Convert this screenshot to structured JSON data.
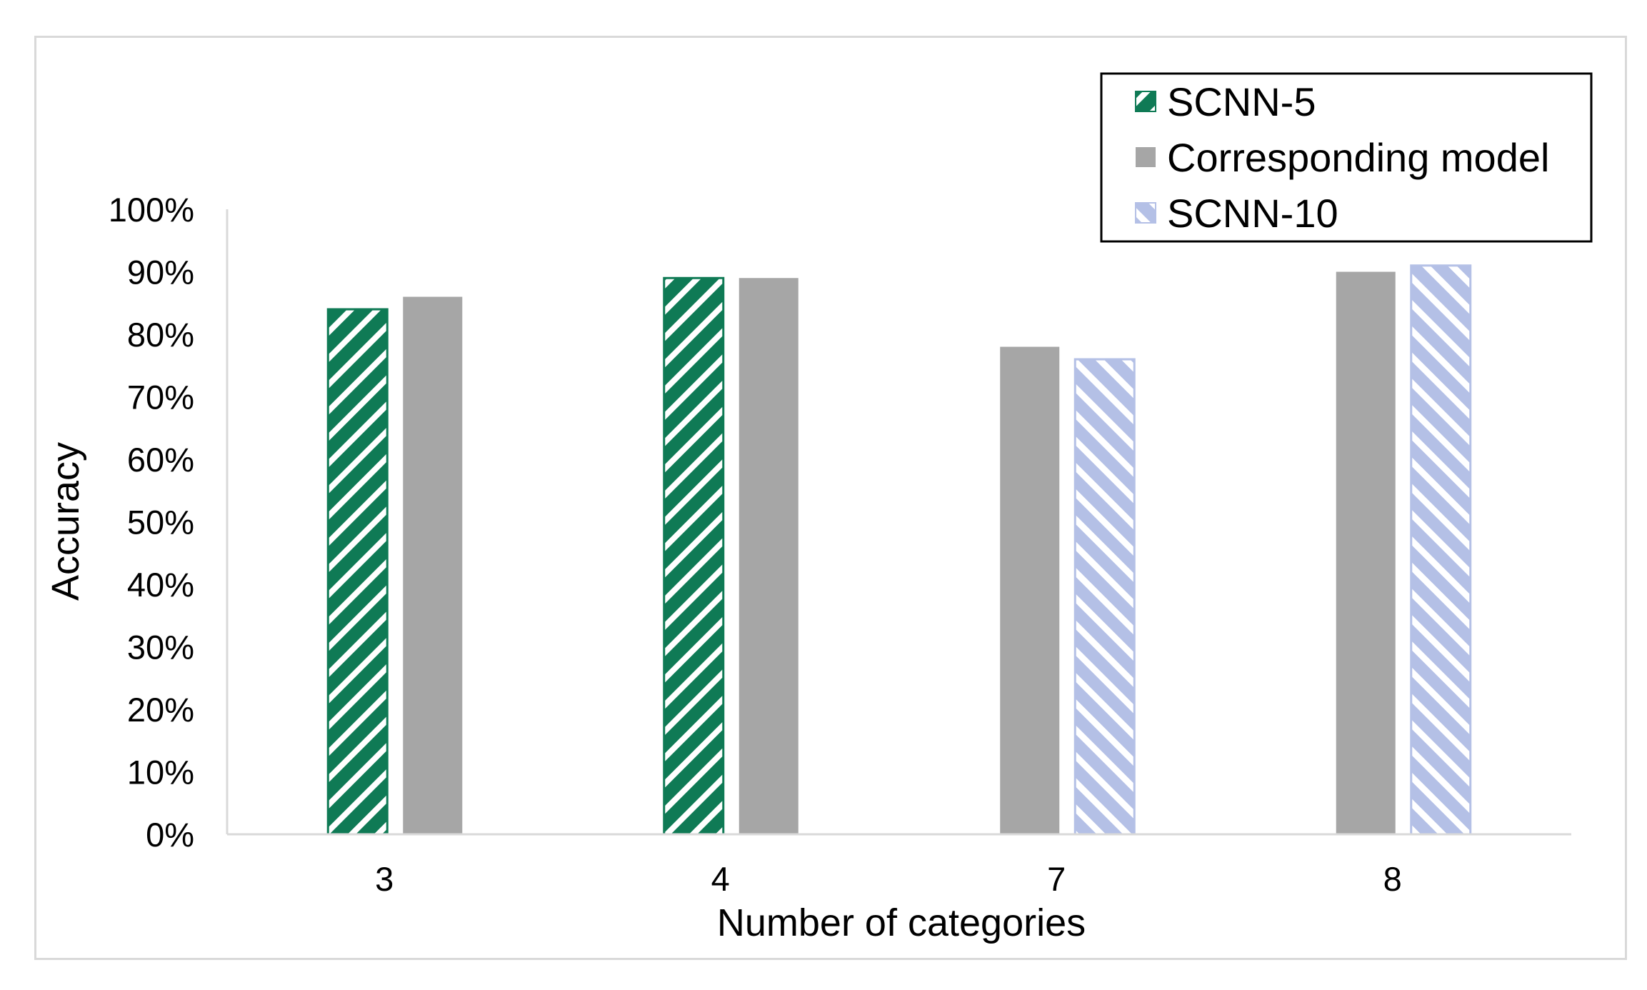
{
  "chart_data": {
    "type": "bar",
    "categories": [
      "3",
      "4",
      "7",
      "8"
    ],
    "series": [
      {
        "name": "SCNN-5",
        "values": [
          84,
          89,
          null,
          null
        ],
        "color": "#0f7a55",
        "pattern": "hatch-forward"
      },
      {
        "name": "Corresponding model",
        "values": [
          86,
          89,
          78,
          90
        ],
        "color": "#a6a6a6",
        "pattern": "solid"
      },
      {
        "name": "SCNN-10",
        "values": [
          null,
          null,
          76,
          91
        ],
        "color": "#b4c0e6",
        "pattern": "hatch-backward"
      }
    ],
    "title": "",
    "xlabel": "Number of categories",
    "ylabel": "Accuracy",
    "ylim": [
      0,
      100
    ],
    "yticks": [
      "0%",
      "10%",
      "20%",
      "30%",
      "40%",
      "50%",
      "60%",
      "70%",
      "80%",
      "90%",
      "100%"
    ],
    "grid": false,
    "legend_position": "top-right"
  }
}
